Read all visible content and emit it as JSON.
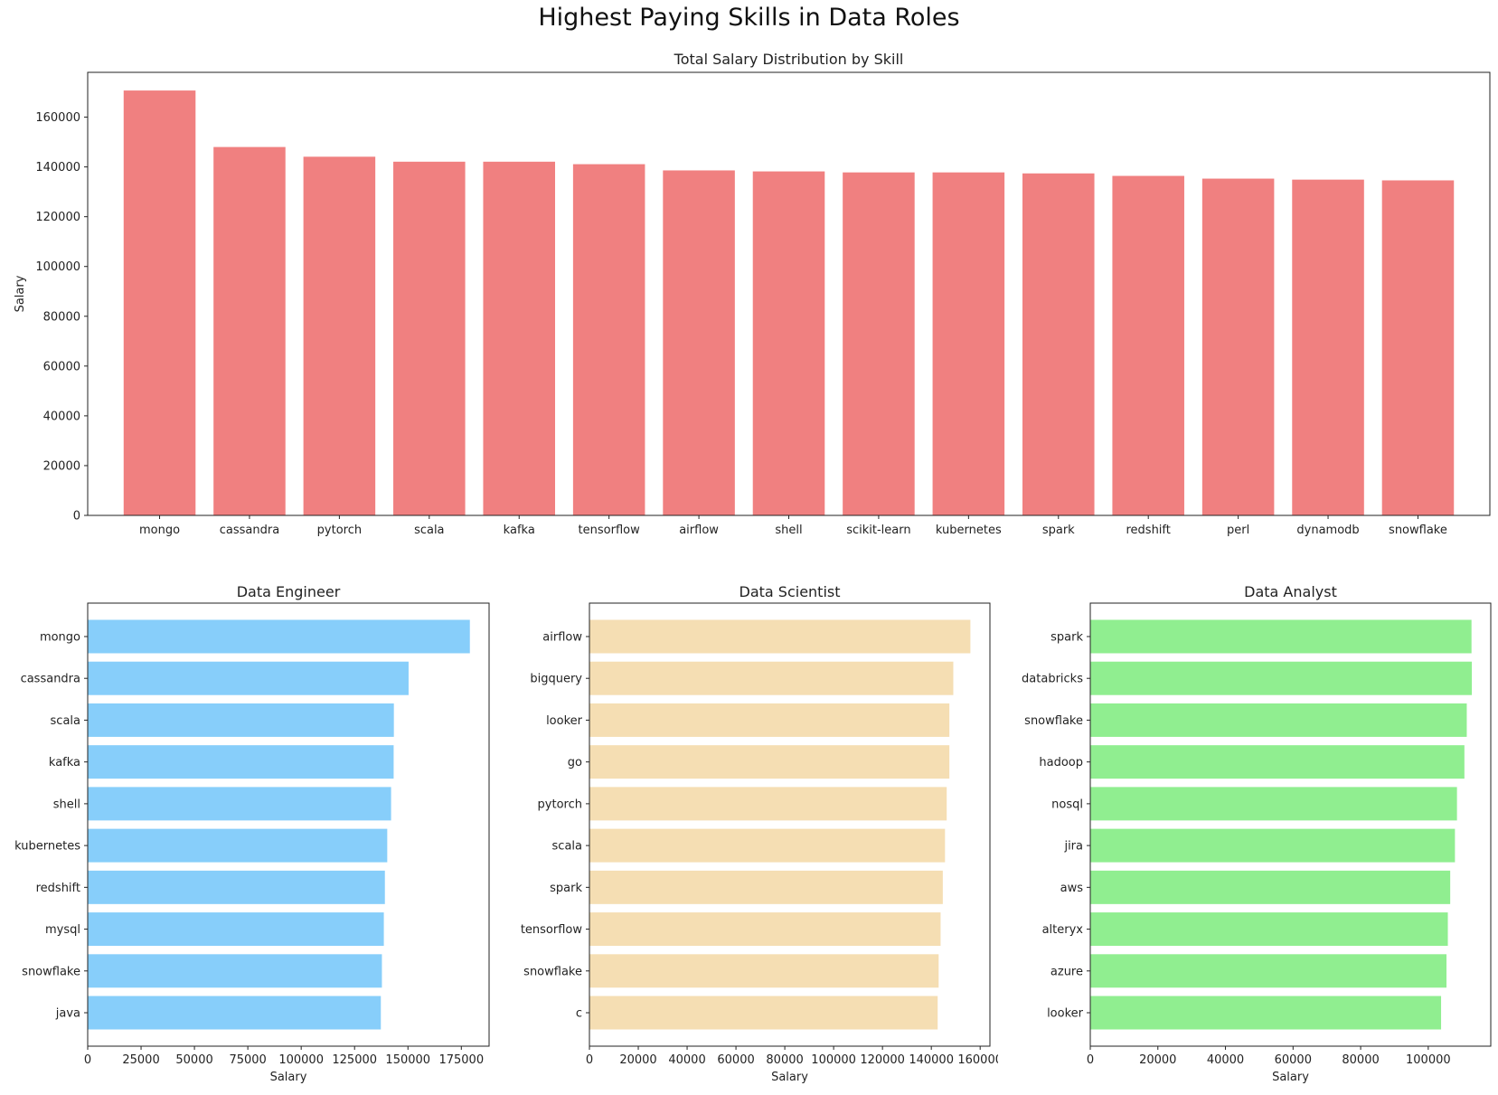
{
  "figure": {
    "title": "Highest Paying Skills in Data Roles"
  },
  "chart_data": [
    {
      "type": "bar",
      "title": "Total Salary Distribution by Skill",
      "xlabel": "",
      "ylabel": "Salary",
      "ylim": [
        0,
        178000
      ],
      "yticks": [
        0,
        20000,
        40000,
        60000,
        80000,
        100000,
        120000,
        140000,
        160000
      ],
      "color": "#f08080",
      "grid": false,
      "categories": [
        "mongo",
        "cassandra",
        "pytorch",
        "scala",
        "kafka",
        "tensorflow",
        "airflow",
        "shell",
        "scikit-learn",
        "kubernetes",
        "spark",
        "redshift",
        "perl",
        "dynamodb",
        "snowflake"
      ],
      "values": [
        170700,
        148000,
        144100,
        142100,
        142100,
        141100,
        138600,
        138200,
        137800,
        137800,
        137400,
        136400,
        135300,
        134900,
        134600
      ]
    },
    {
      "type": "barh",
      "title": "Data Engineer",
      "xlabel": "Salary",
      "ylabel": "",
      "xlim": [
        0,
        188000
      ],
      "xticks": [
        0,
        25000,
        50000,
        75000,
        100000,
        125000,
        150000,
        175000
      ],
      "color": "#87cefa",
      "grid": false,
      "categories": [
        "mongo",
        "cassandra",
        "scala",
        "kafka",
        "shell",
        "kubernetes",
        "redshift",
        "mysql",
        "snowflake",
        "java"
      ],
      "values": [
        179000,
        150300,
        143400,
        143300,
        142100,
        140300,
        139200,
        138700,
        137800,
        137300
      ]
    },
    {
      "type": "barh",
      "title": "Data Scientist",
      "xlabel": "Salary",
      "ylabel": "",
      "xlim": [
        0,
        164000
      ],
      "xticks": [
        0,
        20000,
        40000,
        60000,
        80000,
        100000,
        120000,
        140000,
        160000
      ],
      "color": "#f5deb3",
      "grid": false,
      "categories": [
        "airflow",
        "bigquery",
        "looker",
        "go",
        "pytorch",
        "scala",
        "spark",
        "tensorflow",
        "snowflake",
        "c"
      ],
      "values": [
        156000,
        149000,
        147400,
        147400,
        146300,
        145600,
        144700,
        143800,
        143000,
        142600
      ]
    },
    {
      "type": "barh",
      "title": "Data Analyst",
      "xlabel": "Salary",
      "ylabel": "",
      "xlim": [
        0,
        118500
      ],
      "xticks": [
        0,
        20000,
        40000,
        60000,
        80000,
        100000
      ],
      "color": "#90ee90",
      "grid": false,
      "categories": [
        "spark",
        "databricks",
        "snowflake",
        "hadoop",
        "nosql",
        "jira",
        "aws",
        "alteryx",
        "azure",
        "looker"
      ],
      "values": [
        112800,
        112900,
        111400,
        110700,
        108500,
        107900,
        106500,
        105800,
        105400,
        103800
      ]
    }
  ]
}
